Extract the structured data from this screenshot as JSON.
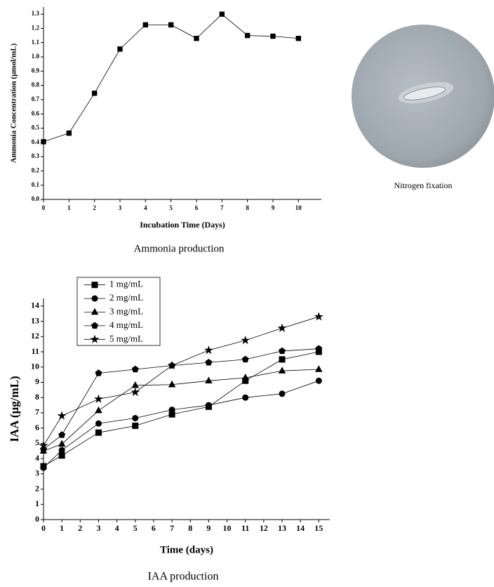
{
  "chart_data": [
    {
      "type": "line",
      "x_label": "Incubation Time (Days)",
      "y_label": "Ammonia Concentration (µmol/mL)",
      "caption": "Ammonia production",
      "x": [
        0,
        1,
        2,
        3,
        4,
        5,
        6,
        7,
        8,
        9,
        10
      ],
      "series": [
        {
          "color": "#000000",
          "marker": "square",
          "values": [
            0.405,
            0.465,
            0.745,
            1.055,
            1.225,
            1.225,
            1.13,
            1.3,
            1.15,
            1.145,
            1.13
          ]
        }
      ],
      "xlim": [
        0,
        10.9
      ],
      "xticks": [
        0,
        1,
        2,
        3,
        4,
        5,
        6,
        7,
        8,
        9,
        10
      ],
      "ylim": [
        0,
        1.35
      ],
      "yticks": [
        {
          "value": 0,
          "label": "0.0"
        },
        0.1,
        0.2,
        0.3,
        0.4,
        0.5,
        0.6,
        0.7,
        0.8,
        0.9,
        {
          "value": 1,
          "label": "1.0"
        },
        1.1,
        1.2,
        1.3
      ]
    },
    {
      "type": "line",
      "x_label": "Time (days)",
      "y_label": "IAA (µg/mL)",
      "caption": "IAA production",
      "legend": "upper left",
      "x": [
        0,
        1,
        3,
        5,
        7,
        9,
        11,
        13,
        15
      ],
      "series": [
        {
          "name": "1 mg/mL",
          "color": "#000000",
          "marker": "square",
          "values": [
            3.5,
            4.2,
            5.7,
            6.15,
            6.9,
            7.4,
            9.1,
            10.5,
            11.0
          ]
        },
        {
          "name": "2 mg/mL",
          "color": "#000000",
          "marker": "circle",
          "values": [
            3.4,
            4.55,
            6.3,
            6.65,
            7.2,
            7.5,
            8.0,
            8.25,
            9.1
          ]
        },
        {
          "name": "3 mg/mL",
          "color": "#000000",
          "marker": "triangle",
          "values": [
            4.5,
            4.95,
            7.15,
            8.8,
            8.85,
            9.1,
            9.3,
            9.75,
            9.85
          ]
        },
        {
          "name": "4 mg/mL",
          "color": "#000000",
          "marker": "pentagon",
          "values": [
            4.6,
            5.55,
            9.6,
            9.85,
            10.1,
            10.3,
            10.5,
            11.05,
            11.2
          ]
        },
        {
          "name": "5 mg/mL",
          "color": "#000000",
          "marker": "star",
          "values": [
            4.85,
            6.8,
            7.9,
            8.35,
            10.1,
            11.1,
            11.75,
            12.55,
            13.3
          ]
        }
      ],
      "xlim": [
        0,
        15.6
      ],
      "xticks": [
        0,
        1,
        2,
        3,
        4,
        5,
        6,
        7,
        8,
        9,
        10,
        11,
        12,
        13,
        14,
        15
      ],
      "ylim": [
        0,
        14.5
      ],
      "yticks": [
        0,
        1,
        2,
        3,
        4,
        5,
        6,
        7,
        8,
        9,
        10,
        11,
        12,
        13,
        14
      ]
    }
  ],
  "image_caption": "Nitrogen fixation"
}
